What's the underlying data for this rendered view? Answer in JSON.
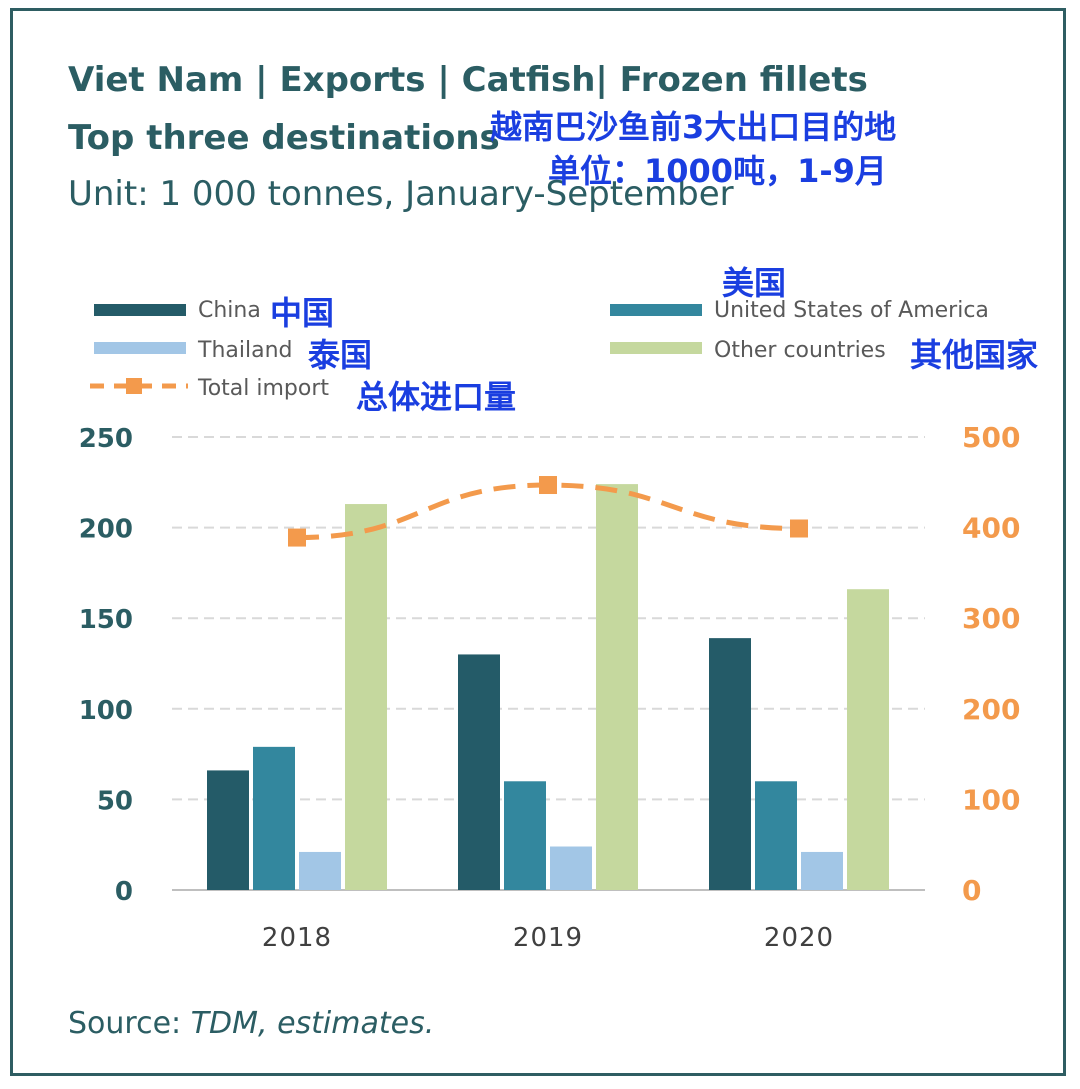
{
  "title_line1": "Viet Nam | Exports | Catfish| Frozen fillets",
  "title_line2": "Top three destinations",
  "unit_text": "Unit: 1 000 tonnes, January-September",
  "source_label": "Source: ",
  "source_text": "TDM, estimates.",
  "annotations": {
    "title_cn": "越南巴沙鱼前3大出口目的地",
    "unit_cn": "单位：1000吨，1-9月",
    "china_cn": "中国",
    "usa_cn": "美国",
    "thailand_cn": "泰国",
    "other_cn": "其他国家",
    "total_cn": "总体进口量"
  },
  "colors": {
    "china": "#245b68",
    "usa": "#33879e",
    "thailand": "#a2c6e6",
    "other": "#c5d89e",
    "total": "#f39a4c",
    "title": "#2b5d63",
    "annotation": "#1a3ee0",
    "grid": "#d9d9d9"
  },
  "chart_data": {
    "type": "bar",
    "categories": [
      "2018",
      "2019",
      "2020"
    ],
    "series": [
      {
        "name": "China",
        "type": "bar",
        "axis": "left",
        "values": [
          66,
          130,
          139
        ]
      },
      {
        "name": "United States of America",
        "type": "bar",
        "axis": "left",
        "values": [
          79,
          60,
          60
        ]
      },
      {
        "name": "Thailand",
        "type": "bar",
        "axis": "left",
        "values": [
          21,
          24,
          21
        ]
      },
      {
        "name": "Other countries",
        "type": "bar",
        "axis": "left",
        "values": [
          213,
          224,
          166
        ]
      },
      {
        "name": "Total import",
        "type": "line",
        "style": "dashed",
        "axis": "right",
        "values": [
          389,
          447,
          399
        ]
      }
    ],
    "ylim_left": [
      0,
      250
    ],
    "yticks_left": [
      "0",
      "50",
      "100",
      "150",
      "200",
      "250"
    ],
    "ylim_right": [
      0,
      500
    ],
    "yticks_right": [
      "0",
      "100",
      "200",
      "300",
      "400",
      "500"
    ],
    "grid": true,
    "legend_position": "top"
  }
}
